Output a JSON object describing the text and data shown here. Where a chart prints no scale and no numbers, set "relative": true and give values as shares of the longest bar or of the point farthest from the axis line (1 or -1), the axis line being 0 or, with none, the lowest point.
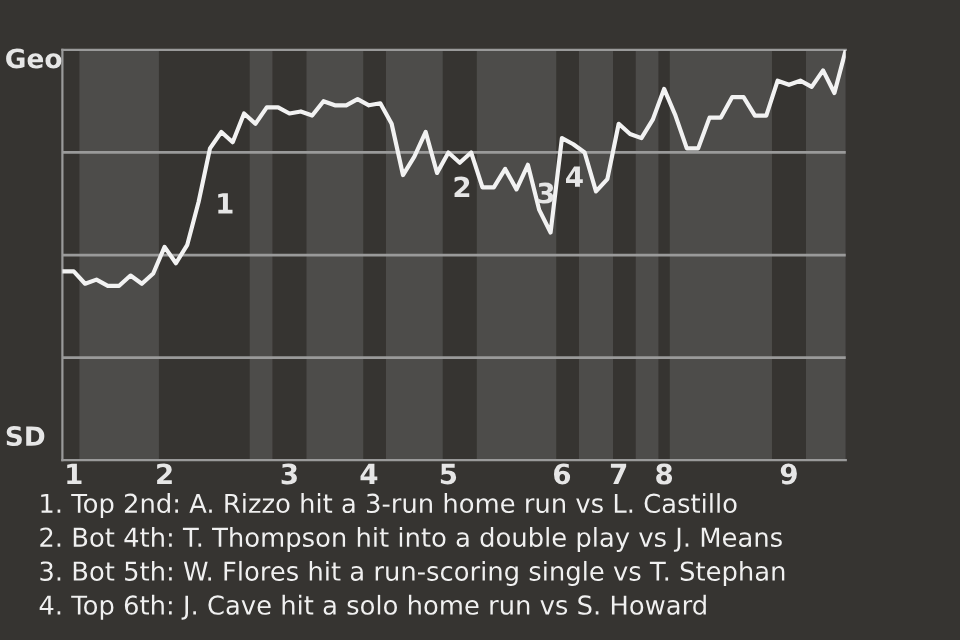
{
  "chart_data": {
    "type": "line",
    "relative": true,
    "categories": [
      null,
      "1",
      null,
      null,
      null,
      null,
      null,
      null,
      null,
      "2",
      null,
      null,
      null,
      null,
      null,
      null,
      null,
      null,
      null,
      null,
      "3",
      null,
      null,
      null,
      null,
      null,
      null,
      "4",
      null,
      null,
      null,
      null,
      null,
      null,
      "5",
      null,
      null,
      null,
      null,
      null,
      null,
      null,
      null,
      null,
      "6",
      null,
      null,
      null,
      null,
      "7",
      null,
      null,
      null,
      "8",
      null,
      null,
      null,
      null,
      null,
      null,
      null,
      null,
      null,
      null,
      "9",
      null,
      null,
      null,
      null,
      null
    ],
    "series": [
      {
        "color": "#f2f2f2",
        "values": [
          0.46,
          0.46,
          0.43,
          0.44,
          0.425,
          0.425,
          0.45,
          0.43,
          0.455,
          0.52,
          0.48,
          0.525,
          0.63,
          0.76,
          0.8,
          0.775,
          0.845,
          0.82,
          0.86,
          0.86,
          0.845,
          0.85,
          0.84,
          0.875,
          0.865,
          0.865,
          0.88,
          0.865,
          0.87,
          0.82,
          0.695,
          0.74,
          0.8,
          0.7,
          0.75,
          0.725,
          0.75,
          0.665,
          0.665,
          0.71,
          0.66,
          0.72,
          0.61,
          0.555,
          0.785,
          0.77,
          0.75,
          0.655,
          0.685,
          0.82,
          0.795,
          0.785,
          0.83,
          0.905,
          0.84,
          0.76,
          0.76,
          0.835,
          0.835,
          0.885,
          0.885,
          0.84,
          0.84,
          0.925,
          0.915,
          0.925,
          0.91,
          0.95,
          0.895,
          1.0
        ]
      }
    ],
    "grid": "y",
    "annotations": [
      "Geo",
      "SD",
      "1",
      "2",
      "3",
      "4",
      "1. Top 2nd: A. Rizzo hit a 3-run home run vs L. Castillo",
      "2. Bot 4th: T. Thompson hit into a double play vs J. Means",
      "3. Bot 5th: W. Flores hit a run-scoring single vs T. Stephan",
      "4. Top 6th: J. Cave hit a solo home run vs S. Howard"
    ],
    "marker": "none",
    "line_style": "solid",
    "legend": false
  }
}
